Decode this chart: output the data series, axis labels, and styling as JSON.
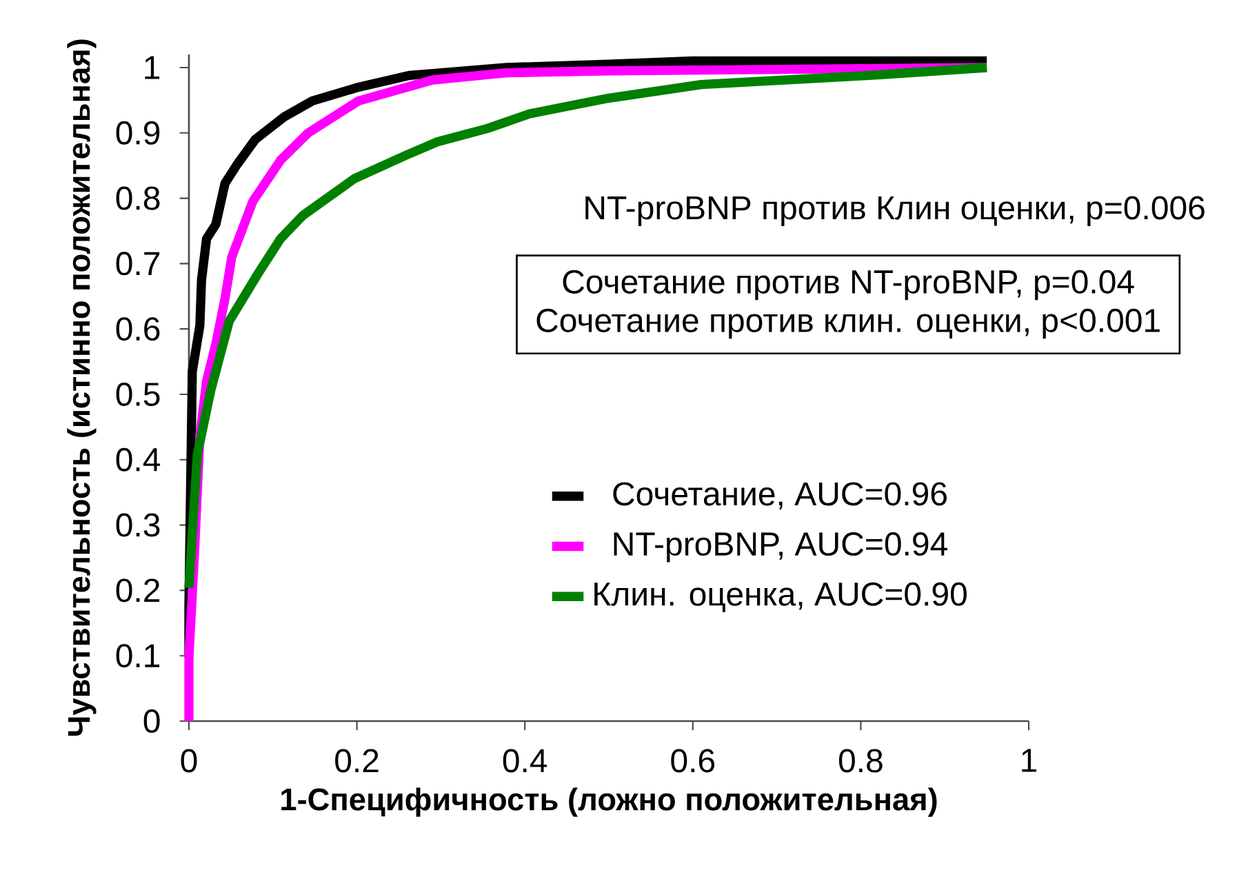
{
  "chart_data": {
    "type": "line",
    "xlabel": "1-Специфичность (ложно положительная)",
    "ylabel": "Чувствительность (истинно положительная)",
    "xlim": [
      0,
      1
    ],
    "ylim": [
      0,
      1.02
    ],
    "xticks": [
      0,
      0.2,
      0.4,
      0.6,
      0.8,
      1
    ],
    "yticks": [
      0,
      0.1,
      0.2,
      0.3,
      0.4,
      0.5,
      0.6,
      0.7,
      0.8,
      0.9,
      1
    ],
    "legend": "right",
    "line_style": "solid",
    "annotations": [
      "NT-proBNP против Клин оценки, p=0.006",
      "Сочетание против NT-proBNP, p=0.04",
      "Сочетание против клин. оценки, p<0.001"
    ],
    "series": [
      {
        "name": "Сочетание, AUC=0.96",
        "color": "#000000",
        "x": [
          0,
          0,
          0.004,
          0.013,
          0.015,
          0.021,
          0.032,
          0.043,
          0.057,
          0.079,
          0.114,
          0.147,
          0.202,
          0.263,
          0.301,
          0.378,
          0.5,
          0.6,
          0.95
        ],
        "values": [
          0.098,
          0.176,
          0.535,
          0.605,
          0.675,
          0.738,
          0.76,
          0.823,
          0.851,
          0.89,
          0.925,
          0.949,
          0.97,
          0.988,
          0.992,
          1.0,
          1.005,
          1.01,
          1.01
        ]
      },
      {
        "name": "NT-proBNP, AUC=0.94",
        "color": "#ff00ff",
        "x": [
          0,
          0,
          0.007,
          0.013,
          0.021,
          0.032,
          0.043,
          0.051,
          0.076,
          0.109,
          0.142,
          0.202,
          0.29,
          0.378,
          0.499,
          0.95
        ],
        "values": [
          0,
          0.098,
          0.267,
          0.436,
          0.52,
          0.577,
          0.647,
          0.71,
          0.795,
          0.858,
          0.9,
          0.949,
          0.981,
          0.992,
          0.995,
          1.0
        ]
      },
      {
        "name": "Клин. оценка, AUC=0.90",
        "color": "#008000",
        "x": [
          0,
          0.01,
          0.026,
          0.048,
          0.081,
          0.109,
          0.136,
          0.197,
          0.257,
          0.295,
          0.356,
          0.405,
          0.499,
          0.61,
          0.81,
          0.95
        ],
        "values": [
          0.204,
          0.408,
          0.506,
          0.612,
          0.682,
          0.738,
          0.774,
          0.83,
          0.865,
          0.886,
          0.907,
          0.929,
          0.953,
          0.974,
          0.988,
          1.0
        ]
      }
    ]
  }
}
